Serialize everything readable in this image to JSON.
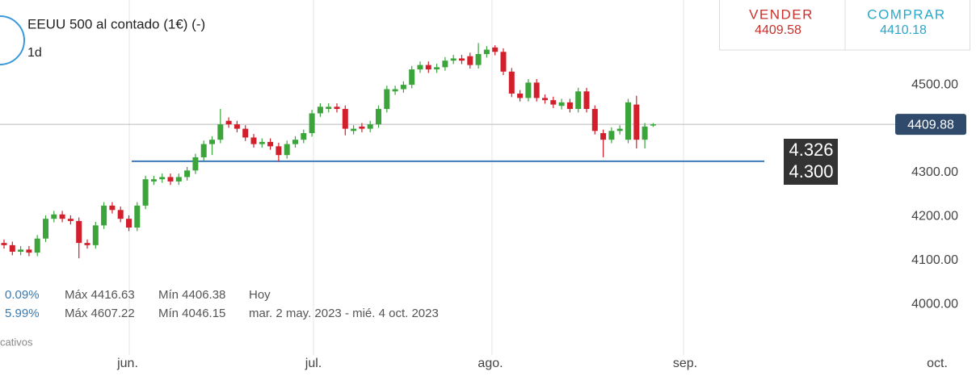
{
  "chart_data": {
    "type": "candlestick",
    "title": "EEUU 500 al contado (1€) (-)",
    "interval": "1d",
    "quote": {
      "sell_label": "VENDER",
      "sell": "4409.58",
      "buy_label": "COMPRAR",
      "buy": "4410.18"
    },
    "stats": [
      {
        "change": "0.09%",
        "max": "Máx 4416.63",
        "min": "Mín 4406.38",
        "period": "Hoy"
      },
      {
        "change": "5.99%",
        "max": "Máx 4607.22",
        "min": "Mín 4046.15",
        "period": "mar. 2 may. 2023 - mié. 4 oct. 2023"
      }
    ],
    "footer_note": "cativos",
    "month_labels": [
      "jun.",
      "jul.",
      "ago.",
      "sep.",
      "oct."
    ],
    "up_color": "#3ba53b",
    "down_color": "#d21f2b",
    "open": [
      4140,
      4135,
      4120,
      4125,
      4118,
      4150,
      4195,
      4205,
      4195,
      4190,
      4140,
      4135,
      4180,
      4225,
      4215,
      4195,
      4175,
      4225,
      4280,
      4285,
      4290,
      4280,
      4290,
      4305,
      4335,
      4365,
      4375,
      4418,
      4410,
      4400,
      4380,
      4365,
      4370,
      4360,
      4340,
      4365,
      4375,
      4390,
      4435,
      4445,
      4450,
      4445,
      4395,
      4405,
      4400,
      4410,
      4445,
      4485,
      4490,
      4500,
      4535,
      4545,
      4535,
      4540,
      4555,
      4560,
      4565,
      4545,
      4570,
      4585,
      4575,
      4530,
      4480,
      4470,
      4505,
      4470,
      4465,
      4452,
      4460,
      4445,
      4485,
      4445,
      4390,
      4375,
      4395,
      4375,
      4455,
      4375,
      4408
    ],
    "high": [
      4148,
      4143,
      4133,
      4133,
      4158,
      4203,
      4213,
      4213,
      4203,
      4198,
      4148,
      4188,
      4233,
      4233,
      4223,
      4203,
      4233,
      4293,
      4293,
      4298,
      4298,
      4298,
      4313,
      4343,
      4373,
      4383,
      4445,
      4426,
      4418,
      4408,
      4388,
      4378,
      4378,
      4368,
      4373,
      4383,
      4398,
      4443,
      4458,
      4458,
      4458,
      4453,
      4408,
      4413,
      4418,
      4453,
      4498,
      4498,
      4508,
      4543,
      4553,
      4553,
      4548,
      4563,
      4568,
      4568,
      4573,
      4595,
      4588,
      4590,
      4583,
      4538,
      4488,
      4513,
      4513,
      4478,
      4473,
      4468,
      4468,
      4493,
      4493,
      4453,
      4398,
      4403,
      4408,
      4468,
      4475,
      4413,
      4413
    ],
    "low": [
      4127,
      4112,
      4112,
      4110,
      4110,
      4142,
      4187,
      4187,
      4182,
      4105,
      4127,
      4127,
      4172,
      4207,
      4187,
      4167,
      4167,
      4217,
      4272,
      4277,
      4272,
      4272,
      4282,
      4297,
      4327,
      4340,
      4367,
      4402,
      4392,
      4372,
      4357,
      4357,
      4352,
      4325,
      4332,
      4357,
      4367,
      4382,
      4427,
      4437,
      4437,
      4385,
      4387,
      4392,
      4392,
      4402,
      4437,
      4477,
      4482,
      4492,
      4527,
      4527,
      4527,
      4532,
      4547,
      4547,
      4537,
      4537,
      4562,
      4567,
      4522,
      4472,
      4462,
      4462,
      4462,
      4457,
      4447,
      4444,
      4437,
      4437,
      4437,
      4387,
      4335,
      4367,
      4387,
      4367,
      4355,
      4355,
      4404
    ],
    "close": [
      4135,
      4120,
      4125,
      4118,
      4150,
      4195,
      4205,
      4195,
      4190,
      4140,
      4135,
      4180,
      4225,
      4215,
      4195,
      4175,
      4225,
      4285,
      4285,
      4290,
      4280,
      4290,
      4305,
      4335,
      4365,
      4375,
      4410,
      4410,
      4400,
      4380,
      4365,
      4370,
      4360,
      4340,
      4365,
      4375,
      4390,
      4435,
      4450,
      4450,
      4445,
      4400,
      4400,
      4400,
      4410,
      4445,
      4490,
      4490,
      4500,
      4535,
      4545,
      4535,
      4540,
      4555,
      4560,
      4555,
      4545,
      4570,
      4580,
      4575,
      4530,
      4480,
      4470,
      4505,
      4470,
      4465,
      4455,
      4460,
      4445,
      4485,
      4445,
      4395,
      4375,
      4395,
      4400,
      4460,
      4375,
      4405,
      4410
    ],
    "last_price": 4409.88,
    "last_price_color": "#2f4a6b",
    "levels": [
      {
        "value": 4326,
        "label": "4.326"
      },
      {
        "value": 4300,
        "label": "4.300"
      }
    ],
    "level_line_color": "#3d78b8",
    "ylim": [
      3885,
      4693
    ],
    "yticks": [
      {
        "value": 4500,
        "label": "4500.00"
      },
      {
        "value": 4300,
        "label": "4300.00"
      },
      {
        "value": 4200,
        "label": "4200.00"
      },
      {
        "value": 4100,
        "label": "4100.00"
      },
      {
        "value": 4000,
        "label": "4000.00"
      }
    ]
  }
}
